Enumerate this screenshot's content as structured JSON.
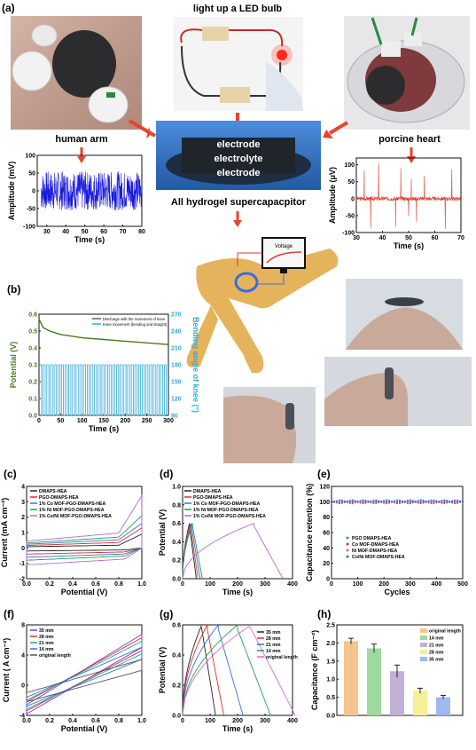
{
  "panels": {
    "a": "(a)",
    "b": "(b)",
    "c": "(c)",
    "d": "(d)",
    "e": "(e)",
    "f": "(f)",
    "g": "(g)",
    "h": "(h)"
  },
  "labels": {
    "led": "light up a LED bulb",
    "human_arm": "human arm",
    "porcine_heart": "porcine heart",
    "electrode_top": "electrode",
    "electrolyte": "electrolyte",
    "electrode_bottom": "electrode",
    "device": "All hydrogel supercapacpitor",
    "voltage": "Voltage"
  },
  "colors": {
    "arrow": "#e8442b",
    "arm_signal": "#1a1adf",
    "heart_signal": "#e03a2b",
    "discharge": "#4a7a1a",
    "knee": "#35a9d8",
    "leg": "#e5b35c",
    "skin": "#d9b8a3"
  },
  "chart_data": [
    {
      "id": "arm",
      "type": "line",
      "xlabel": "Time (s)",
      "ylabel": "Amplitude (mV)",
      "xlim": [
        25,
        80
      ],
      "ylim": [
        -100,
        100
      ],
      "xticks": [
        "30",
        "40",
        "50",
        "60",
        "70",
        "80"
      ],
      "yticks": [
        "-100",
        "-50",
        "0",
        "50",
        "100"
      ],
      "series": [
        {
          "values_desc": "noise",
          "x_range": [
            27,
            80
          ],
          "amplitude": 55
        }
      ]
    },
    {
      "id": "heart",
      "type": "line",
      "xlabel": "Time (s)",
      "ylabel": "Amplitude (μV)",
      "xlim": [
        30,
        70
      ],
      "ylim": [
        -100,
        120
      ],
      "xticks": [
        "30",
        "40",
        "50",
        "60",
        "70"
      ],
      "yticks": [
        "-100",
        "-50",
        "0",
        "50",
        "100"
      ],
      "series": [
        {
          "spikes": [
            33,
            35.5,
            38.5,
            45,
            47,
            50,
            51,
            53,
            56,
            64,
            66.5
          ]
        }
      ]
    },
    {
      "id": "b",
      "type": "line",
      "xlabel": "Time (s)",
      "ylabel": "Potential (V)",
      "ylabel2": "Bending angle of knee (°)",
      "xlim": [
        0,
        300
      ],
      "ylim": [
        0,
        0.6
      ],
      "ylim2": [
        90,
        270
      ],
      "xticks": [
        "0",
        "50",
        "100",
        "150",
        "200",
        "250",
        "300"
      ],
      "yticks": [
        "0.0",
        "0.1",
        "0.2",
        "0.3",
        "0.4",
        "0.5",
        "0.6"
      ],
      "yticks2": [
        "90",
        "120",
        "150",
        "180",
        "210",
        "240",
        "270"
      ],
      "legend": [
        "Discharge with the movement of knee",
        "Knee movement (bending and straight)"
      ],
      "discharge": {
        "x": [
          0,
          10,
          25,
          50,
          100,
          150,
          200,
          250,
          300
        ],
        "y": [
          0.57,
          0.52,
          0.5,
          0.48,
          0.46,
          0.45,
          0.44,
          0.43,
          0.42
        ]
      },
      "knee": {
        "min": 90,
        "max": 180,
        "cycles": 35
      }
    },
    {
      "id": "c",
      "type": "line",
      "xlabel": "Potential (V)",
      "ylabel": "Current (mA cm⁻²)",
      "xlim": [
        0,
        1.0
      ],
      "ylim": [
        -2,
        4
      ],
      "xticks": [
        "0.0",
        "0.2",
        "0.4",
        "0.6",
        "0.8",
        "1.0"
      ],
      "yticks": [
        "-2",
        "-1",
        "0",
        "1",
        "2",
        "3",
        "4"
      ],
      "series": [
        {
          "name": "DMAPS-HEA",
          "color": "#222222",
          "up": 0.2,
          "down": -0.2,
          "tail": 0.9
        },
        {
          "name": "PGO-DMAPS-HEA",
          "color": "#e0302a",
          "up": 0.4,
          "down": -0.4,
          "tail": 1.3
        },
        {
          "name": "1% Co MOF-PGO-DMAPS-HEA",
          "color": "#3a6de0",
          "up": 0.6,
          "down": -0.6,
          "tail": 1.6
        },
        {
          "name": "1% Ni MOF-PGO-DMAPS-HEA",
          "color": "#23a04a",
          "up": 0.8,
          "down": -0.8,
          "tail": 2.1
        },
        {
          "name": "1% Co/Ni MOF-PGO-DMAPS-HEA",
          "color": "#b46ad9",
          "up": 1.1,
          "down": -1.1,
          "tail": 3.4
        }
      ]
    },
    {
      "id": "d",
      "type": "line",
      "xlabel": "Time (s)",
      "ylabel": "Potential (V)",
      "xlim": [
        0,
        400
      ],
      "ylim": [
        0,
        1.0
      ],
      "xticks": [
        "0",
        "100",
        "200",
        "300",
        "400"
      ],
      "yticks": [
        "0.0",
        "0.2",
        "0.4",
        "0.6",
        "0.8",
        "1.0"
      ],
      "series": [
        {
          "name": "DMAPS-HEA",
          "color": "#222222",
          "tc": 25,
          "td": 25
        },
        {
          "name": "PGO-DMAPS-HEA",
          "color": "#e0302a",
          "tc": 28,
          "td": 28
        },
        {
          "name": "1% Co MOF-PGO-DMAPS-HEA",
          "color": "#3a6de0",
          "tc": 32,
          "td": 32
        },
        {
          "name": "1% Ni MOF-PGO-DMAPS-HEA",
          "color": "#23a04a",
          "tc": 36,
          "td": 36
        },
        {
          "name": "1% Co/Ni MOF-PGO-DMAPS-HEA",
          "color": "#b46ad9",
          "tc": 260,
          "td": 105
        }
      ]
    },
    {
      "id": "e",
      "type": "scatter",
      "xlabel": "Cycles",
      "ylabel": "Capacitance retention (%)",
      "xlim": [
        0,
        500
      ],
      "ylim": [
        0,
        120
      ],
      "xticks": [
        "0",
        "100",
        "200",
        "300",
        "400",
        "500"
      ],
      "yticks": [
        "0",
        "20",
        "40",
        "60",
        "80",
        "100",
        "120"
      ],
      "series": [
        {
          "name": "PGO DMAPS-HEA",
          "color": "#23a07a"
        },
        {
          "name": "Co MOF-DMAPS-HEA",
          "color": "#e0302a"
        },
        {
          "name": "Ni MOF-DMAPS-HEA",
          "color": "#b46ad9"
        },
        {
          "name": "Co/Ni MOF-DMAPS-HEA",
          "color": "#3a6de0"
        }
      ],
      "value": 100
    },
    {
      "id": "f",
      "type": "line",
      "xlabel": "Potential (V)",
      "ylabel": "Current ( A cm⁻²)",
      "xlim": [
        0,
        1.0
      ],
      "ylim": [
        -4,
        8
      ],
      "xticks": [
        "0.0",
        "0.2",
        "0.4",
        "0.6",
        "0.8",
        "1.0"
      ],
      "yticks": [
        "-4",
        "0",
        "4",
        "8"
      ],
      "series": [
        {
          "name": "35 mm",
          "color": "#7a3ad9",
          "lo": -3.2,
          "hi": 7.8
        },
        {
          "name": "28 mm",
          "color": "#e0302a",
          "lo": -2.8,
          "hi": 7.2
        },
        {
          "name": "21 mm",
          "color": "#23a0a0",
          "lo": -2.6,
          "hi": 6.6
        },
        {
          "name": "14 mm",
          "color": "#3a6de0",
          "lo": -2.2,
          "hi": 5.6
        },
        {
          "name": "original length",
          "color": "#555555",
          "lo": -1.6,
          "hi": 3.6
        }
      ]
    },
    {
      "id": "g",
      "type": "line",
      "xlabel": "Time (s)",
      "ylabel": "Potential (V)",
      "xlim": [
        0,
        400
      ],
      "ylim": [
        0,
        0.6
      ],
      "xticks": [
        "0",
        "100",
        "200",
        "300",
        "400"
      ],
      "yticks": [
        "0.0",
        "0.2",
        "0.4",
        "0.6"
      ],
      "series": [
        {
          "name": "35 mm",
          "color": "#222222",
          "tc": 70,
          "td": 50
        },
        {
          "name": "28 mm",
          "color": "#e0302a",
          "tc": 90,
          "td": 60
        },
        {
          "name": "21 mm",
          "color": "#3a6de0",
          "tc": 130,
          "td": 90
        },
        {
          "name": "14 mm",
          "color": "#23a04a",
          "tc": 200,
          "td": 120
        },
        {
          "name": "original length",
          "color": "#d26ad9",
          "tc": 250,
          "td": 160
        }
      ]
    },
    {
      "id": "h",
      "type": "bar",
      "ylabel": "Capacitance (F cm⁻²)",
      "ylim": [
        0,
        2.5
      ],
      "yticks": [
        "0.0",
        "0.5",
        "1.0",
        "1.5",
        "2.0",
        "2.5"
      ],
      "categories": [
        "original length",
        "14 mm",
        "21 mm",
        "28 mm",
        "35 mm"
      ],
      "values": [
        2.05,
        1.85,
        1.22,
        0.68,
        0.5
      ],
      "errors": [
        0.08,
        0.12,
        0.17,
        0.07,
        0.05
      ],
      "colors": [
        "#f5c58f",
        "#9ed99e",
        "#c3b0d9",
        "#f5ef96",
        "#9fb9ef"
      ]
    }
  ]
}
